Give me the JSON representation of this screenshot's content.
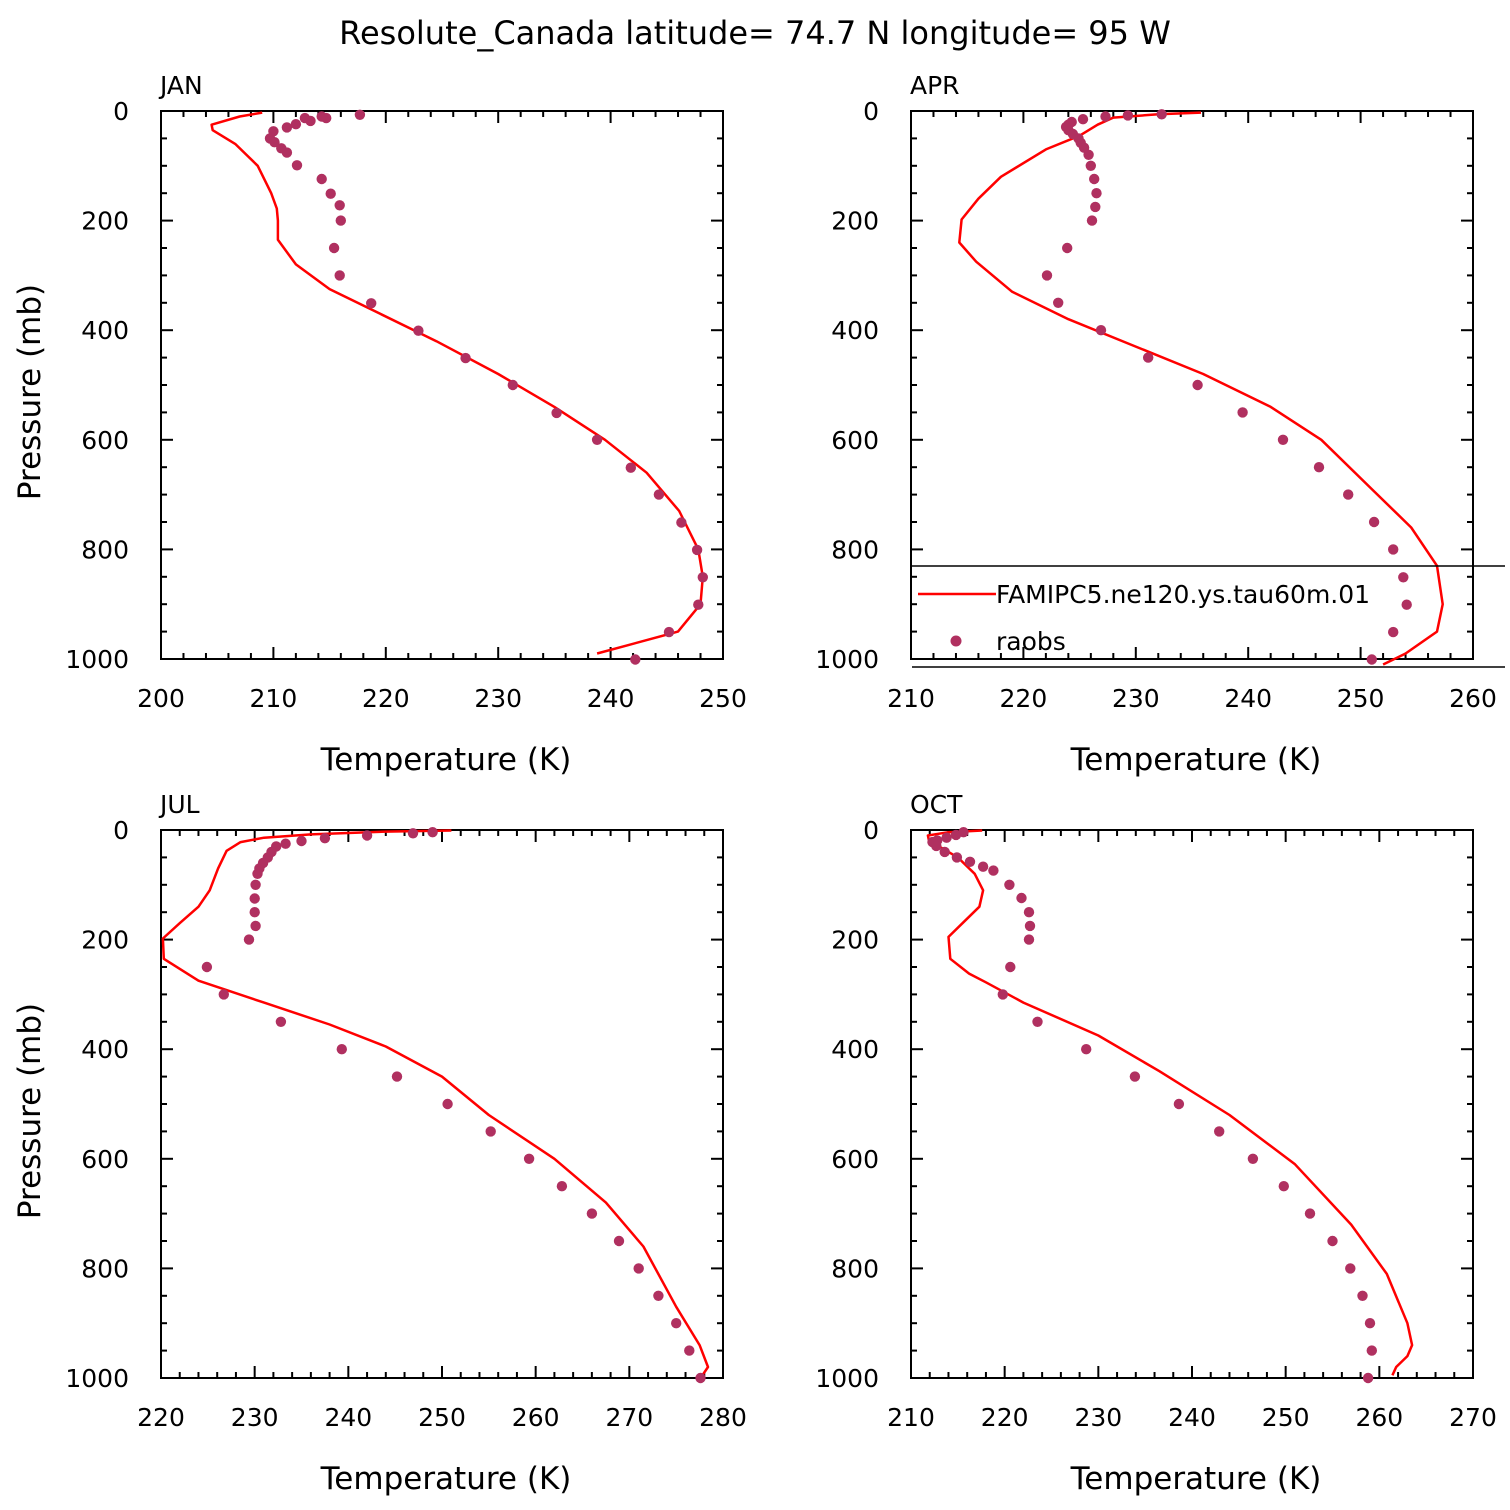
{
  "title": "Resolute_Canada  latitude= 74.7 N longitude= 95 W",
  "colors": {
    "model": "#ff0000",
    "obs": "#b03060",
    "axis": "#000000"
  },
  "legend": {
    "model_label": "FAMIPC5.ne120.ys.tau60m.01",
    "obs_label": "raobs",
    "placement": "APR panel, lower right"
  },
  "chart_data": [
    {
      "type": "line",
      "panel": "JAN",
      "title": "JAN",
      "xlabel": "Temperature (K)",
      "ylabel": "Pressure (mb)",
      "xlim": [
        200,
        250
      ],
      "ylim": [
        1000,
        0
      ],
      "xticks": [
        200,
        210,
        220,
        230,
        240,
        250
      ],
      "yticks": [
        0,
        200,
        400,
        600,
        800,
        1000
      ],
      "series": [
        {
          "name": "FAMIPC5.ne120.ys.tau60m.01",
          "style": "line",
          "points": [
            [
              209.0,
              3
            ],
            [
              207.0,
              10
            ],
            [
              204.5,
              25
            ],
            [
              204.6,
              35
            ],
            [
              206.6,
              60
            ],
            [
              208.6,
              100
            ],
            [
              209.8,
              150
            ],
            [
              210.3,
              178
            ],
            [
              210.4,
              200
            ],
            [
              210.4,
              235
            ],
            [
              212.0,
              280
            ],
            [
              215.0,
              325
            ],
            [
              219.5,
              370
            ],
            [
              224.5,
              420
            ],
            [
              230.0,
              480
            ],
            [
              235.0,
              540
            ],
            [
              239.5,
              600
            ],
            [
              243.2,
              660
            ],
            [
              246.1,
              730
            ],
            [
              247.8,
              800
            ],
            [
              248.2,
              850
            ],
            [
              248.0,
              900
            ],
            [
              246.0,
              950
            ],
            [
              241.5,
              975
            ],
            [
              238.8,
              990
            ]
          ]
        },
        {
          "name": "raobs",
          "style": "markers",
          "points": [
            [
              217.7,
              7
            ],
            [
              214.7,
              13
            ],
            [
              214.3,
              10
            ],
            [
              213.3,
              18
            ],
            [
              212.8,
              13
            ],
            [
              212.0,
              24
            ],
            [
              211.2,
              30
            ],
            [
              210.0,
              37
            ],
            [
              209.7,
              50
            ],
            [
              210.1,
              57
            ],
            [
              210.7,
              68
            ],
            [
              211.2,
              76
            ],
            [
              212.1,
              99
            ],
            [
              214.3,
              124
            ],
            [
              215.1,
              151
            ],
            [
              215.9,
              172
            ],
            [
              216.0,
              200
            ],
            [
              215.4,
              250
            ],
            [
              215.9,
              300
            ],
            [
              218.7,
              351
            ],
            [
              222.9,
              401
            ],
            [
              227.1,
              451
            ],
            [
              231.3,
              500
            ],
            [
              235.2,
              551
            ],
            [
              238.8,
              600
            ],
            [
              241.8,
              651
            ],
            [
              244.3,
              700
            ],
            [
              246.3,
              751
            ],
            [
              247.7,
              801
            ],
            [
              248.2,
              851
            ],
            [
              247.8,
              901
            ],
            [
              245.2,
              951
            ],
            [
              242.2,
              1001
            ]
          ]
        }
      ]
    },
    {
      "type": "line",
      "panel": "APR",
      "title": "APR",
      "xlabel": "Temperature (K)",
      "ylabel": "",
      "xlim": [
        210,
        260
      ],
      "ylim": [
        1000,
        0
      ],
      "xticks": [
        210,
        220,
        230,
        240,
        250,
        260
      ],
      "yticks": [
        0,
        200,
        400,
        600,
        800,
        1000
      ],
      "series": [
        {
          "name": "FAMIPC5.ne120.ys.tau60m.01",
          "style": "line",
          "points": [
            [
              235.8,
              3
            ],
            [
              232.0,
              6
            ],
            [
              228.0,
              12
            ],
            [
              226.6,
              25
            ],
            [
              225.0,
              45
            ],
            [
              222.0,
              70
            ],
            [
              218.0,
              120
            ],
            [
              216.0,
              160
            ],
            [
              214.5,
              198
            ],
            [
              214.3,
              240
            ],
            [
              215.8,
              275
            ],
            [
              219.0,
              330
            ],
            [
              224.0,
              380
            ],
            [
              230.0,
              430
            ],
            [
              236.0,
              480
            ],
            [
              242.0,
              540
            ],
            [
              246.5,
              600
            ],
            [
              251.0,
              690
            ],
            [
              254.5,
              760
            ],
            [
              256.8,
              830
            ],
            [
              257.3,
              900
            ],
            [
              256.8,
              950
            ],
            [
              254.0,
              990
            ],
            [
              252.0,
              1010
            ]
          ]
        },
        {
          "name": "raobs",
          "style": "markers",
          "points": [
            [
              232.3,
              6
            ],
            [
              229.3,
              8
            ],
            [
              227.3,
              10
            ],
            [
              225.3,
              15
            ],
            [
              224.3,
              20
            ],
            [
              224.0,
              25
            ],
            [
              223.8,
              29
            ],
            [
              224.0,
              35
            ],
            [
              224.4,
              42
            ],
            [
              224.9,
              50
            ],
            [
              225.1,
              58
            ],
            [
              225.4,
              67
            ],
            [
              225.8,
              80
            ],
            [
              226.0,
              100
            ],
            [
              226.3,
              124
            ],
            [
              226.5,
              150
            ],
            [
              226.4,
              175
            ],
            [
              226.1,
              200
            ],
            [
              223.9,
              250
            ],
            [
              222.1,
              300
            ],
            [
              223.1,
              350
            ],
            [
              226.9,
              400
            ],
            [
              231.1,
              450
            ],
            [
              235.5,
              500
            ],
            [
              239.5,
              550
            ],
            [
              243.1,
              600
            ],
            [
              246.3,
              650
            ],
            [
              248.9,
              700
            ],
            [
              251.2,
              750
            ],
            [
              252.9,
              800
            ],
            [
              253.8,
              851
            ],
            [
              254.1,
              901
            ],
            [
              252.9,
              951
            ],
            [
              251.0,
              1001
            ]
          ]
        }
      ]
    },
    {
      "type": "line",
      "panel": "JUL",
      "title": "JUL",
      "xlabel": "Temperature (K)",
      "ylabel": "Pressure (mb)",
      "xlim": [
        220,
        280
      ],
      "ylim": [
        1000,
        0
      ],
      "xticks": [
        220,
        230,
        240,
        250,
        260,
        270,
        280
      ],
      "yticks": [
        0,
        200,
        400,
        600,
        800,
        1000
      ],
      "series": [
        {
          "name": "FAMIPC5.ne120.ys.tau60m.01",
          "style": "line",
          "points": [
            [
              251.0,
              1
            ],
            [
              244.0,
              3
            ],
            [
              236.0,
              8
            ],
            [
              231.0,
              14
            ],
            [
              228.5,
              22
            ],
            [
              227.0,
              38
            ],
            [
              226.1,
              70
            ],
            [
              225.2,
              110
            ],
            [
              224.0,
              140
            ],
            [
              222.0,
              170
            ],
            [
              220.2,
              198
            ],
            [
              220.3,
              235
            ],
            [
              224.0,
              275
            ],
            [
              231.0,
              315
            ],
            [
              238.0,
              355
            ],
            [
              244.0,
              395
            ],
            [
              250.0,
              450
            ],
            [
              255.0,
              520
            ],
            [
              262.0,
              600
            ],
            [
              267.5,
              680
            ],
            [
              271.5,
              760
            ],
            [
              275.0,
              870
            ],
            [
              277.5,
              940
            ],
            [
              278.4,
              980
            ],
            [
              277.8,
              995
            ]
          ]
        },
        {
          "name": "raobs",
          "style": "markers",
          "points": [
            [
              249.0,
              4
            ],
            [
              246.9,
              6
            ],
            [
              242.0,
              10
            ],
            [
              237.5,
              15
            ],
            [
              235.0,
              20
            ],
            [
              233.3,
              25
            ],
            [
              232.3,
              30
            ],
            [
              231.8,
              40
            ],
            [
              231.4,
              50
            ],
            [
              230.9,
              60
            ],
            [
              230.5,
              70
            ],
            [
              230.3,
              80
            ],
            [
              230.1,
              100
            ],
            [
              230.0,
              125
            ],
            [
              230.0,
              150
            ],
            [
              230.1,
              175
            ],
            [
              229.4,
              200
            ],
            [
              224.9,
              250
            ],
            [
              226.7,
              300
            ],
            [
              232.8,
              350
            ],
            [
              239.3,
              400
            ],
            [
              245.2,
              450
            ],
            [
              250.6,
              500
            ],
            [
              255.2,
              550
            ],
            [
              259.3,
              600
            ],
            [
              262.8,
              650
            ],
            [
              266.0,
              700
            ],
            [
              268.9,
              750
            ],
            [
              271.0,
              800
            ],
            [
              273.1,
              850
            ],
            [
              275.0,
              900
            ],
            [
              276.4,
              950
            ],
            [
              277.6,
              1000
            ]
          ]
        }
      ]
    },
    {
      "type": "line",
      "panel": "OCT",
      "title": "OCT",
      "xlabel": "Temperature (K)",
      "ylabel": "",
      "xlim": [
        210,
        270
      ],
      "ylim": [
        1000,
        0
      ],
      "xticks": [
        210,
        220,
        230,
        240,
        250,
        260,
        270
      ],
      "yticks": [
        0,
        200,
        400,
        600,
        800,
        1000
      ],
      "series": [
        {
          "name": "FAMIPC5.ne120.ys.tau60m.01",
          "style": "line",
          "points": [
            [
              217.6,
              1
            ],
            [
              214.0,
              4
            ],
            [
              211.8,
              10
            ],
            [
              211.9,
              18
            ],
            [
              213.0,
              30
            ],
            [
              215.0,
              50
            ],
            [
              216.8,
              80
            ],
            [
              217.7,
              110
            ],
            [
              217.3,
              140
            ],
            [
              215.5,
              170
            ],
            [
              214.0,
              195
            ],
            [
              214.2,
              235
            ],
            [
              216.2,
              262
            ],
            [
              218.0,
              278
            ],
            [
              222.0,
              315
            ],
            [
              230.0,
              375
            ],
            [
              236.5,
              440
            ],
            [
              244.0,
              520
            ],
            [
              251.0,
              610
            ],
            [
              257.0,
              720
            ],
            [
              260.8,
              810
            ],
            [
              263.0,
              900
            ],
            [
              263.5,
              940
            ],
            [
              263.0,
              960
            ],
            [
              261.8,
              980
            ],
            [
              261.4,
              995
            ]
          ]
        },
        {
          "name": "raobs",
          "style": "markers",
          "points": [
            [
              215.6,
              4
            ],
            [
              214.8,
              9
            ],
            [
              213.8,
              14
            ],
            [
              212.8,
              19
            ],
            [
              212.3,
              22
            ],
            [
              212.7,
              29
            ],
            [
              213.6,
              40
            ],
            [
              214.9,
              50
            ],
            [
              216.3,
              58
            ],
            [
              217.7,
              67
            ],
            [
              218.8,
              74
            ],
            [
              220.5,
              100
            ],
            [
              221.8,
              124
            ],
            [
              222.6,
              150
            ],
            [
              222.7,
              175
            ],
            [
              222.6,
              200
            ],
            [
              220.6,
              250
            ],
            [
              219.8,
              300
            ],
            [
              223.5,
              350
            ],
            [
              228.7,
              400
            ],
            [
              233.9,
              450
            ],
            [
              238.6,
              500
            ],
            [
              242.9,
              550
            ],
            [
              246.5,
              600
            ],
            [
              249.8,
              650
            ],
            [
              252.6,
              700
            ],
            [
              255.0,
              750
            ],
            [
              256.9,
              800
            ],
            [
              258.2,
              850
            ],
            [
              259.0,
              900
            ],
            [
              259.2,
              950
            ],
            [
              258.8,
              1000
            ]
          ]
        }
      ]
    }
  ]
}
